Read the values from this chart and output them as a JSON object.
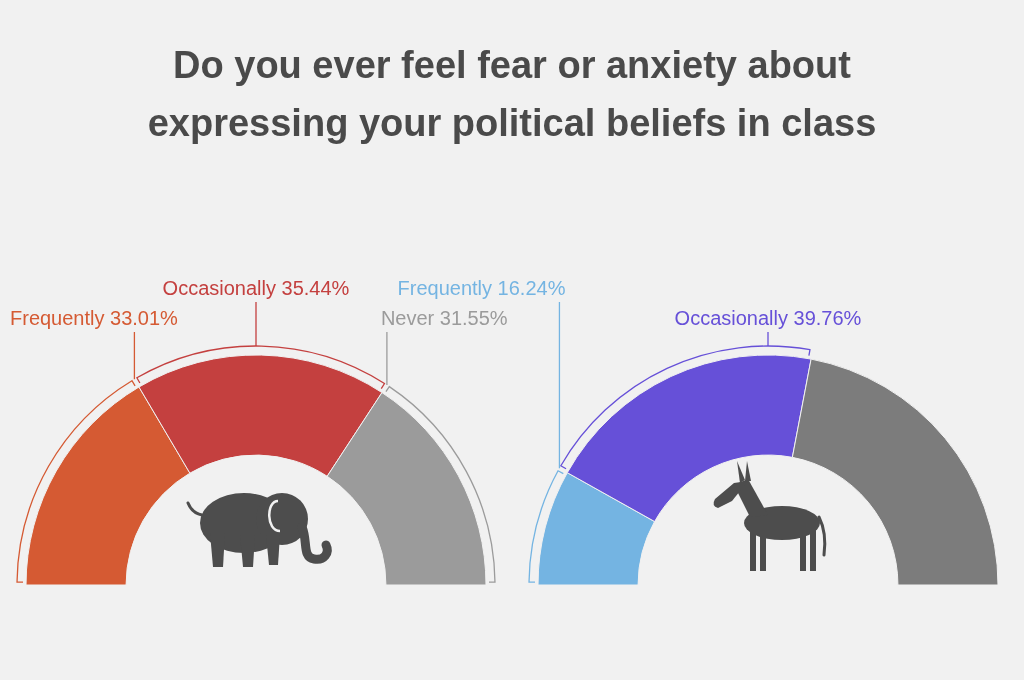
{
  "chart_data": [
    {
      "type": "donut",
      "title": "Do you ever feel fear or anxiety about expressing your political beliefs in class",
      "categories": [
        "Frequently",
        "Occasionally",
        "Never"
      ],
      "values": [
        33.01,
        35.44,
        31.55
      ],
      "value_labels": [
        "33.01%",
        "35.44%",
        "31.55%"
      ],
      "colors": [
        "#d55a33",
        "#c4403f",
        "#9b9b9b"
      ]
    },
    {
      "type": "donut",
      "categories": [
        "Frequently",
        "Occasionally",
        null
      ],
      "values": [
        16.24,
        39.76,
        44.0
      ],
      "value_labels": [
        "16.24%",
        "39.76%",
        null
      ],
      "colors": [
        "#74b4e2",
        "#6650d8",
        "#7c7c7c"
      ]
    }
  ]
}
